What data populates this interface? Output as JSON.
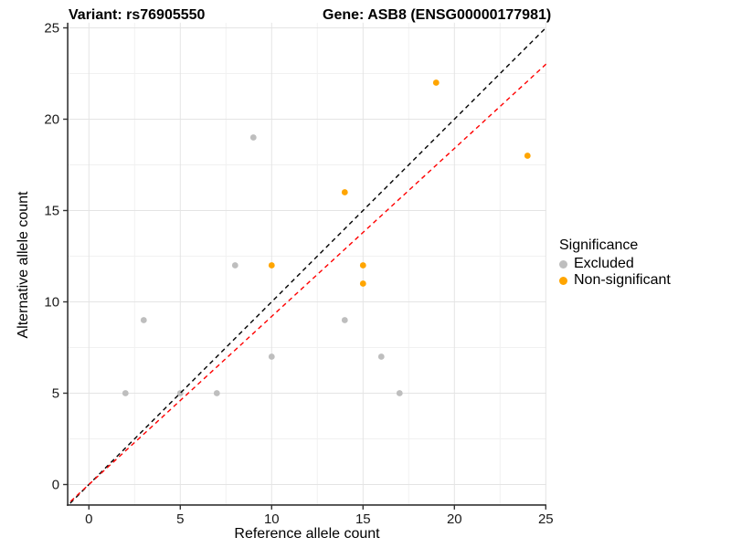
{
  "titles": {
    "variant": "Variant: rs76905550",
    "gene": "Gene: ASB8 (ENSG00000177981)"
  },
  "chart_data": {
    "type": "scatter",
    "xlabel": "Reference allele count",
    "ylabel": "Alternative allele count",
    "x_ticks": [
      0,
      5,
      10,
      15,
      20,
      25
    ],
    "y_ticks": [
      0,
      5,
      10,
      15,
      20,
      25
    ],
    "xlim": [
      -1.16,
      25.03
    ],
    "ylim": [
      -1.12,
      25.28
    ],
    "grid": "major+minor",
    "legend": {
      "title": "Significance",
      "position": "right",
      "entries": [
        {
          "label": "Excluded",
          "color": "#BEBEBE"
        },
        {
          "label": "Non-significant",
          "color": "#FFA500"
        }
      ]
    },
    "series": [
      {
        "name": "Excluded",
        "color": "#BEBEBE",
        "points": [
          [
            2,
            5
          ],
          [
            3,
            9
          ],
          [
            5,
            5
          ],
          [
            7,
            5
          ],
          [
            8,
            12
          ],
          [
            9,
            19
          ],
          [
            10,
            7
          ],
          [
            14,
            9
          ],
          [
            16,
            7
          ],
          [
            17,
            5
          ]
        ]
      },
      {
        "name": "Non-significant",
        "color": "#FFA500",
        "points": [
          [
            10,
            12
          ],
          [
            14,
            16
          ],
          [
            15,
            11
          ],
          [
            15,
            12
          ],
          [
            19,
            22
          ],
          [
            24,
            18
          ]
        ]
      }
    ],
    "lines": [
      {
        "name": "identity-line",
        "color": "#000000",
        "style": "dashed",
        "slope": 1,
        "intercept": 0
      },
      {
        "name": "fit-line",
        "color": "#FF0000",
        "style": "dashed",
        "slope": 0.92,
        "intercept": 0
      }
    ],
    "colors": {
      "grid_major": "#E4E4E4",
      "grid_minor": "#F1F1F1",
      "axis_line": "#333333",
      "tick_label": "#1a1a1a"
    }
  }
}
